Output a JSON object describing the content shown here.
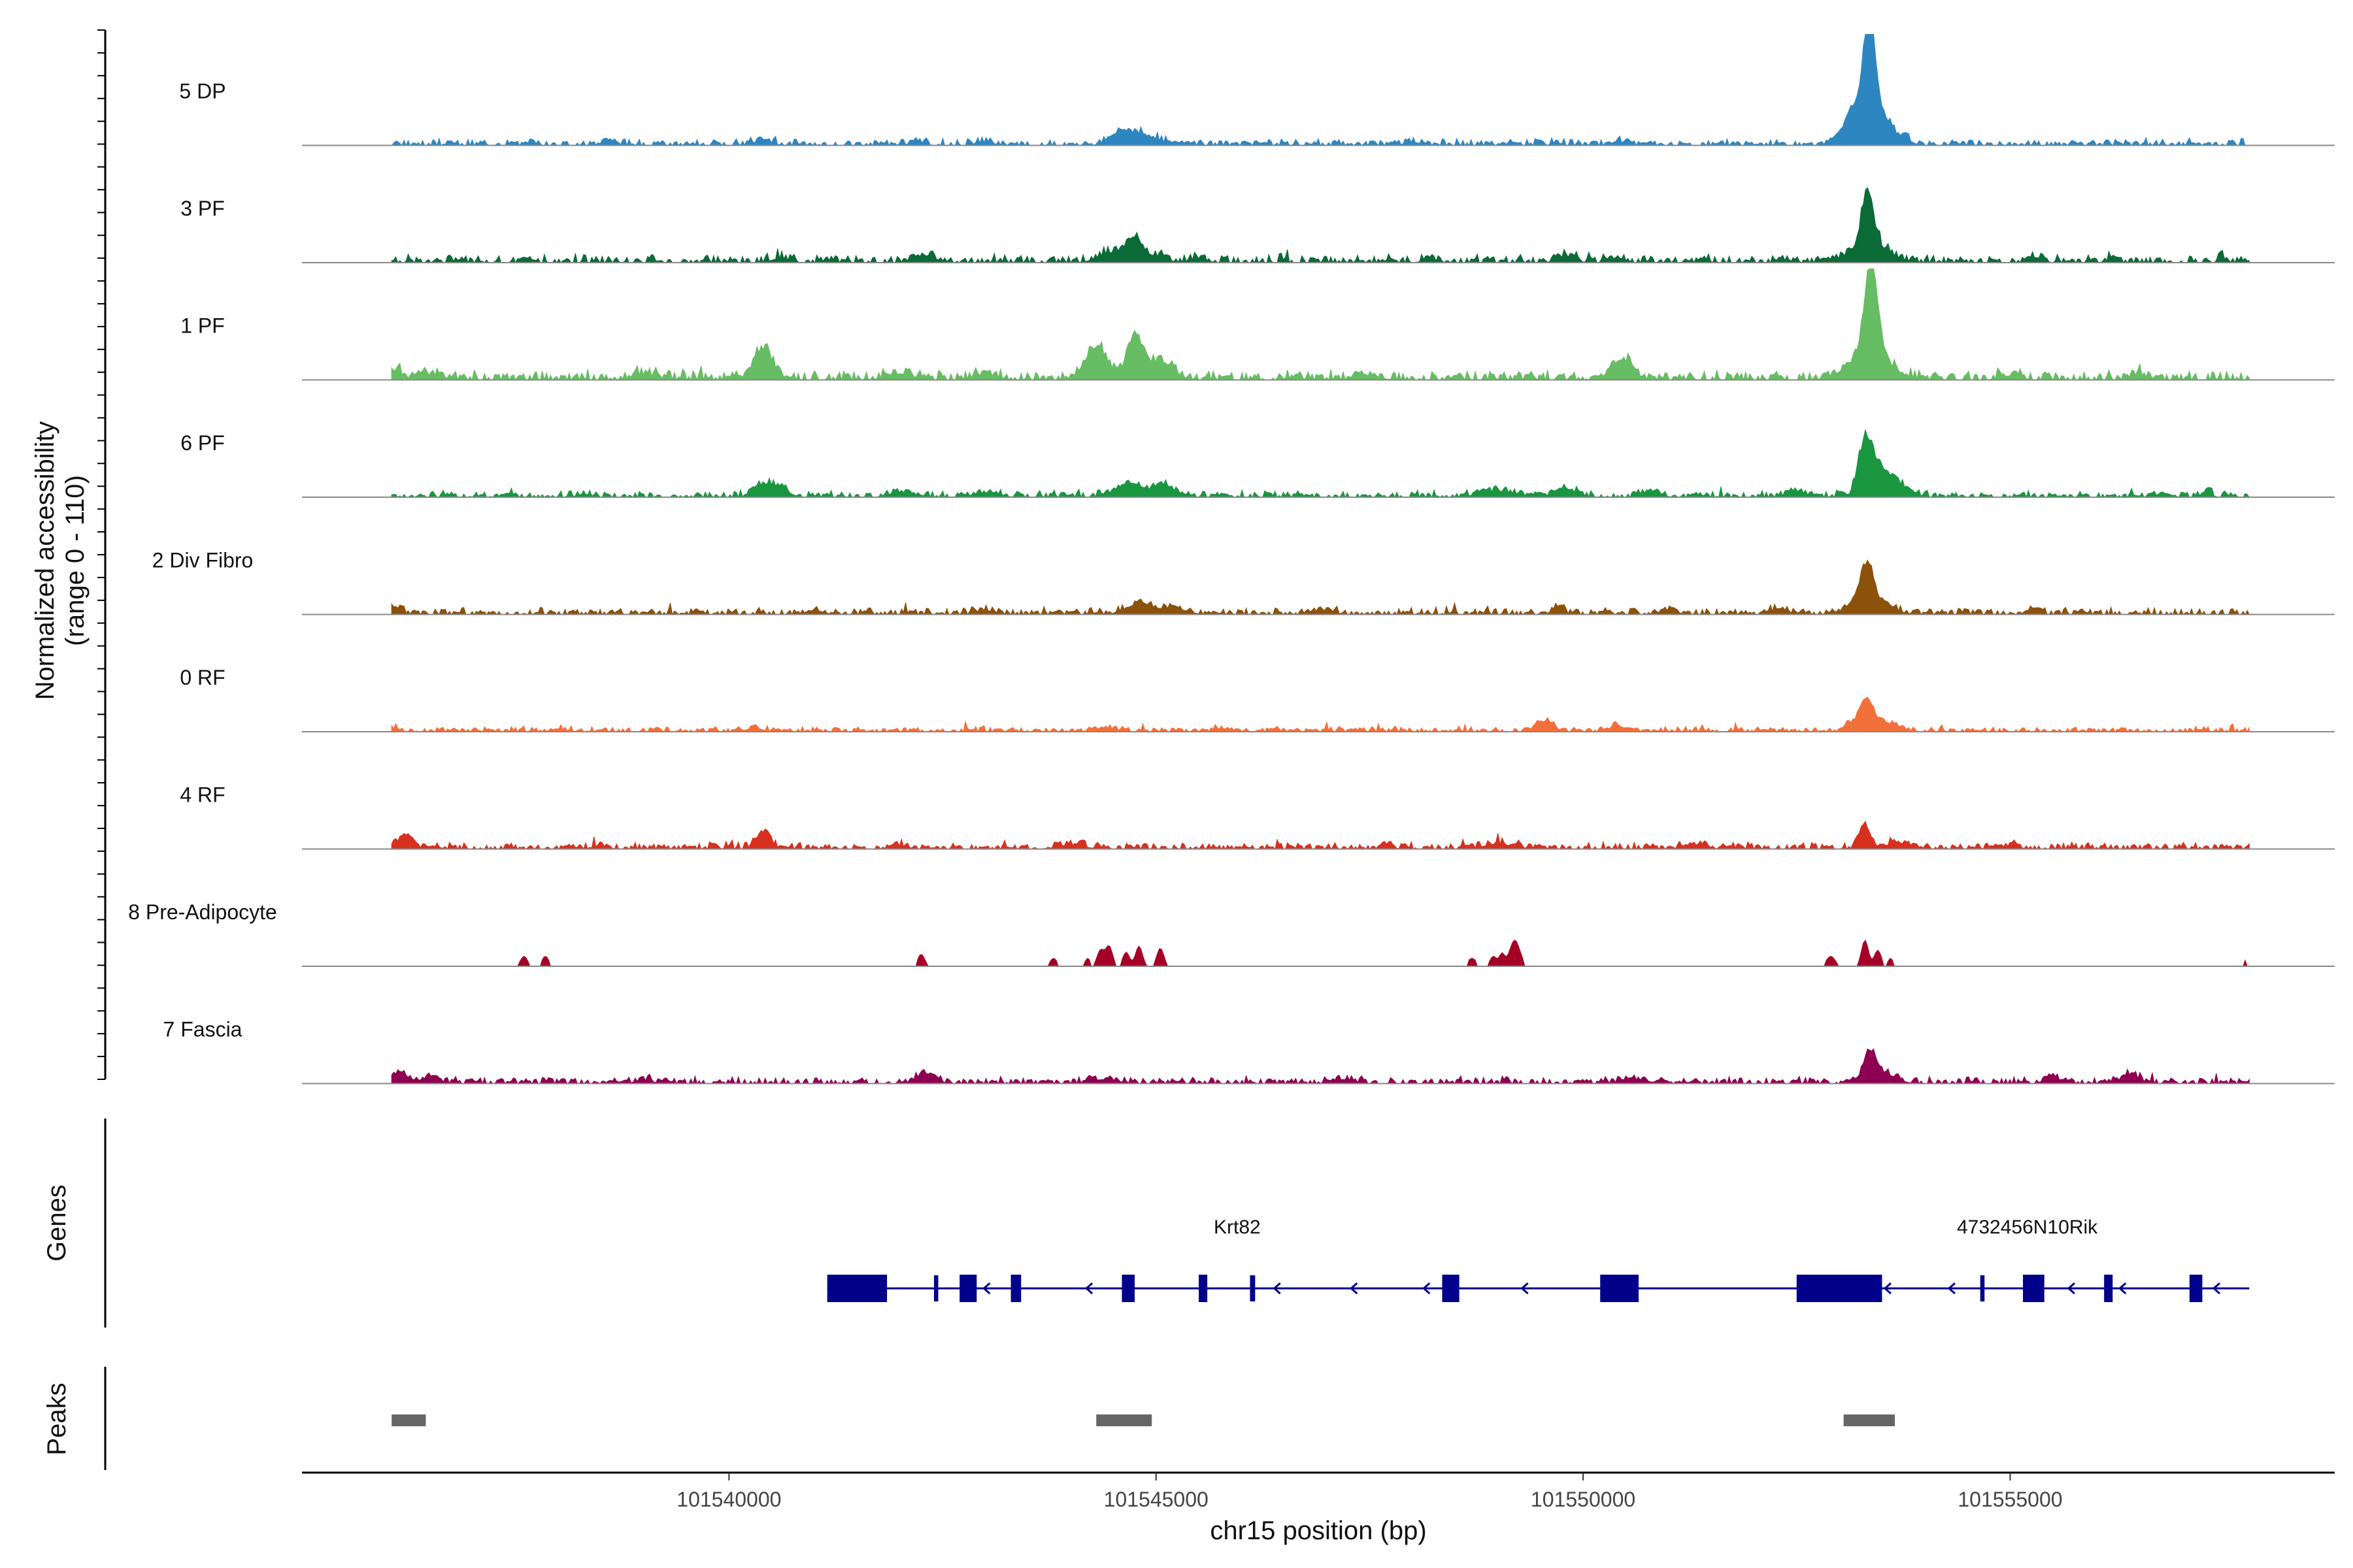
{
  "chart_data": {
    "type": "coverage",
    "y_axis": {
      "title_line1": "Normalized accessibility",
      "title_line2": "(range 0 - 110)",
      "range": [
        0,
        110
      ]
    },
    "x_axis": {
      "title": "chr15 position (bp)",
      "range": [
        101535000,
        101558800
      ],
      "data_start": 101536050,
      "data_end": 101557800,
      "ticks": [
        101540000,
        101545000,
        101550000,
        101555000
      ],
      "tick_labels": [
        "101540000",
        "101545000",
        "101550000",
        "101555000"
      ]
    },
    "tracks": [
      {
        "name": "5 DP",
        "color": "#2E86C1",
        "baseline": 0.05,
        "noise_seed": 3,
        "spotty": false,
        "peaks": [
          [
            101553350,
            110,
            55
          ],
          [
            101553350,
            48,
            190
          ],
          [
            101553150,
            10,
            90
          ],
          [
            101544700,
            12,
            150
          ],
          [
            101544500,
            6,
            90
          ],
          [
            101544950,
            5,
            120
          ],
          [
            101540400,
            4,
            100
          ],
          [
            101538600,
            4,
            80
          ],
          [
            101542200,
            3,
            90
          ],
          [
            101543000,
            3,
            100
          ],
          [
            101548000,
            3,
            90
          ],
          [
            101550400,
            4,
            60
          ],
          [
            101553800,
            3,
            60
          ]
        ]
      },
      {
        "name": "3 PF",
        "color": "#0B6B37",
        "baseline": 0.06,
        "noise_seed": 7,
        "spotty": false,
        "peaks": [
          [
            101553330,
            52,
            65
          ],
          [
            101553350,
            20,
            200
          ],
          [
            101544750,
            22,
            90
          ],
          [
            101544500,
            10,
            160
          ],
          [
            101545000,
            6,
            120
          ],
          [
            101545500,
            4,
            90
          ],
          [
            101542300,
            5,
            150
          ],
          [
            101540600,
            4,
            100
          ],
          [
            101549800,
            6,
            100
          ],
          [
            101550400,
            5,
            80
          ],
          [
            101548200,
            3,
            80
          ],
          [
            101555300,
            5,
            80
          ],
          [
            101556200,
            4,
            60
          ],
          [
            101557500,
            4,
            40
          ]
        ]
      },
      {
        "name": "1 PF",
        "color": "#66BD63",
        "baseline": 0.07,
        "noise_seed": 11,
        "spotty": false,
        "peaks": [
          [
            101553370,
            88,
            75
          ],
          [
            101553350,
            26,
            230
          ],
          [
            101540400,
            30,
            110
          ],
          [
            101544300,
            32,
            130
          ],
          [
            101544750,
            42,
            90
          ],
          [
            101545050,
            18,
            150
          ],
          [
            101550450,
            20,
            120
          ],
          [
            101536100,
            10,
            60
          ],
          [
            101539000,
            5,
            150
          ],
          [
            101542000,
            6,
            150
          ],
          [
            101543000,
            5,
            120
          ],
          [
            101547500,
            4,
            120
          ],
          [
            101555000,
            4,
            120
          ],
          [
            101556500,
            5,
            100
          ],
          [
            101536500,
            5,
            150
          ]
        ]
      },
      {
        "name": "6 PF",
        "color": "#1A9641",
        "baseline": 0.05,
        "noise_seed": 17,
        "spotty": false,
        "peaks": [
          [
            101553300,
            45,
            75
          ],
          [
            101553450,
            28,
            130
          ],
          [
            101553700,
            10,
            120
          ],
          [
            101540400,
            12,
            100
          ],
          [
            101540600,
            8,
            100
          ],
          [
            101544700,
            14,
            160
          ],
          [
            101545100,
            12,
            100
          ],
          [
            101542000,
            5,
            120
          ],
          [
            101543000,
            4,
            150
          ],
          [
            101549000,
            6,
            200
          ],
          [
            101549800,
            7,
            120
          ],
          [
            101550800,
            6,
            100
          ],
          [
            101552500,
            6,
            100
          ],
          [
            101556800,
            4,
            80
          ],
          [
            101557300,
            4,
            60
          ],
          [
            101538300,
            3,
            80
          ]
        ]
      },
      {
        "name": "2 Div Fibro",
        "color": "#8C510A",
        "baseline": 0.05,
        "noise_seed": 23,
        "spotty": false,
        "peaks": [
          [
            101553320,
            38,
            80
          ],
          [
            101553350,
            12,
            220
          ],
          [
            101544800,
            10,
            150
          ],
          [
            101545200,
            6,
            150
          ],
          [
            101549700,
            8,
            60
          ],
          [
            101552300,
            6,
            80
          ],
          [
            101555300,
            5,
            60
          ],
          [
            101536100,
            5,
            80
          ],
          [
            101541000,
            4,
            100
          ],
          [
            101543000,
            4,
            100
          ],
          [
            101547000,
            4,
            100
          ],
          [
            101551000,
            4,
            100
          ]
        ]
      },
      {
        "name": "0 RF",
        "color": "#F4703A",
        "baseline": 0.04,
        "noise_seed": 29,
        "spotty": false,
        "peaks": [
          [
            101553320,
            28,
            70
          ],
          [
            101553500,
            10,
            150
          ],
          [
            101553150,
            8,
            80
          ],
          [
            101549550,
            10,
            100
          ],
          [
            101550400,
            6,
            80
          ],
          [
            101538000,
            3,
            80
          ],
          [
            101540300,
            4,
            80
          ],
          [
            101544400,
            4,
            120
          ],
          [
            101545800,
            3,
            100
          ],
          [
            101536100,
            4,
            40
          ]
        ]
      },
      {
        "name": "4 RF",
        "color": "#D7301F",
        "baseline": 0.05,
        "noise_seed": 31,
        "spotty": false,
        "peaks": [
          [
            101553300,
            23,
            65
          ],
          [
            101553700,
            6,
            150
          ],
          [
            101540400,
            17,
            80
          ],
          [
            101536200,
            12,
            90
          ],
          [
            101547700,
            5,
            60
          ],
          [
            101549000,
            5,
            150
          ],
          [
            101551300,
            4,
            100
          ],
          [
            101544000,
            4,
            150
          ],
          [
            101538500,
            3,
            80
          ],
          [
            101555000,
            3,
            100
          ],
          [
            101542000,
            3,
            100
          ]
        ]
      },
      {
        "name": "8 Pre-Adipocyte",
        "color": "#A50026",
        "baseline": 0,
        "noise_seed": 37,
        "spotty": true,
        "peaks": [
          [
            101537600,
            10,
            40
          ],
          [
            101537850,
            10,
            40
          ],
          [
            101542250,
            12,
            40
          ],
          [
            101543800,
            8,
            40
          ],
          [
            101544200,
            8,
            30
          ],
          [
            101544350,
            16,
            40
          ],
          [
            101544450,
            20,
            40
          ],
          [
            101544650,
            14,
            40
          ],
          [
            101544800,
            20,
            40
          ],
          [
            101545050,
            18,
            40
          ],
          [
            101548700,
            8,
            50
          ],
          [
            101548950,
            10,
            40
          ],
          [
            101549200,
            26,
            60
          ],
          [
            101549050,
            12,
            30
          ],
          [
            101552900,
            10,
            50
          ],
          [
            101553300,
            26,
            40
          ],
          [
            101553450,
            16,
            40
          ],
          [
            101553600,
            8,
            30
          ],
          [
            101557750,
            6,
            20
          ]
        ]
      },
      {
        "name": "7 Fascia",
        "color": "#8E0152",
        "baseline": 0.05,
        "noise_seed": 41,
        "spotty": false,
        "peaks": [
          [
            101553350,
            27,
            70
          ],
          [
            101553500,
            10,
            150
          ],
          [
            101542300,
            10,
            100
          ],
          [
            101536150,
            12,
            80
          ],
          [
            101536500,
            6,
            100
          ],
          [
            101544400,
            4,
            150
          ],
          [
            101556400,
            8,
            100
          ],
          [
            101555500,
            5,
            100
          ],
          [
            101550600,
            4,
            150
          ],
          [
            101547200,
            4,
            100
          ],
          [
            101539000,
            3,
            100
          ]
        ]
      }
    ],
    "genes": {
      "label": "Genes",
      "color": "#00008B",
      "items": [
        {
          "name": "Krt82",
          "start": 101541150,
          "end": 101552650,
          "label_pos": 101545950,
          "exons": [
            [
              101541150,
              101541850
            ],
            [
              101542400,
              101542450
            ],
            [
              101542700,
              101542900
            ],
            [
              101543300,
              101543420
            ],
            [
              101544600,
              101544750
            ],
            [
              101545500,
              101545600
            ],
            [
              101546100,
              101546160
            ],
            [
              101548350,
              101548550
            ],
            [
              101550200,
              101550650
            ]
          ],
          "arrows": [
            101543000,
            101544200,
            101546400,
            101547300,
            101548150,
            101549300
          ]
        },
        {
          "name": "4732456N10Rik",
          "start": 101552500,
          "end": 101557800,
          "label_pos": 101555200,
          "exons": [
            [
              101552500,
              101553500
            ],
            [
              101554650,
              101554700
            ],
            [
              101555150,
              101555400
            ],
            [
              101556100,
              101556200
            ],
            [
              101557100,
              101557250
            ]
          ],
          "arrows": [
            101553550,
            101554300,
            101555700,
            101556300,
            101557400
          ]
        }
      ]
    },
    "peaks_track": {
      "label": "Peaks",
      "color": "#666666",
      "regions": [
        [
          101536050,
          101536450
        ],
        [
          101544300,
          101544950
        ],
        [
          101553050,
          101553650
        ]
      ]
    }
  }
}
